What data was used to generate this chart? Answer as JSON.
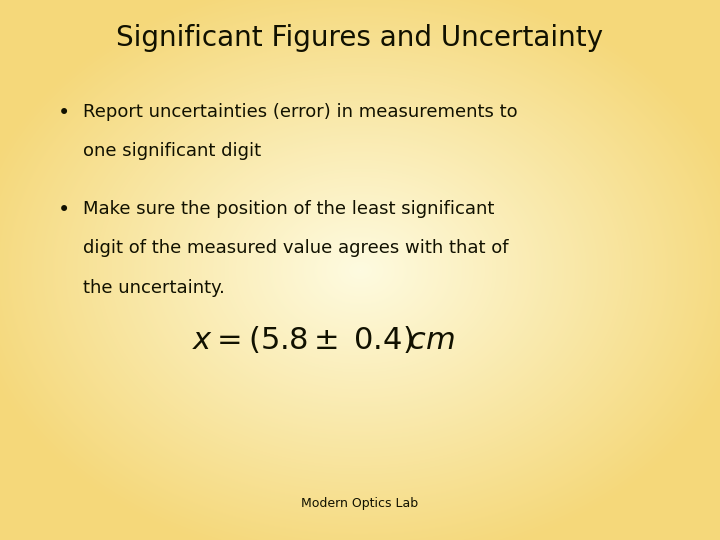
{
  "title": "Significant Figures and Uncertainty",
  "bullet1_line1": "Report uncertainties (error) in measurements to",
  "bullet1_line2": "one significant digit",
  "bullet2_line1": "Make sure the position of the least significant",
  "bullet2_line2": "digit of the measured value agrees with that of",
  "bullet2_line3": "the uncertainty.",
  "footer": "Modern Optics Lab",
  "bg_color_center": "#FEFBE0",
  "bg_color_edge": "#F5D87A",
  "title_fontsize": 20,
  "bullet_fontsize": 13,
  "formula_fontsize": 22,
  "footer_fontsize": 9,
  "text_color": "#111100"
}
